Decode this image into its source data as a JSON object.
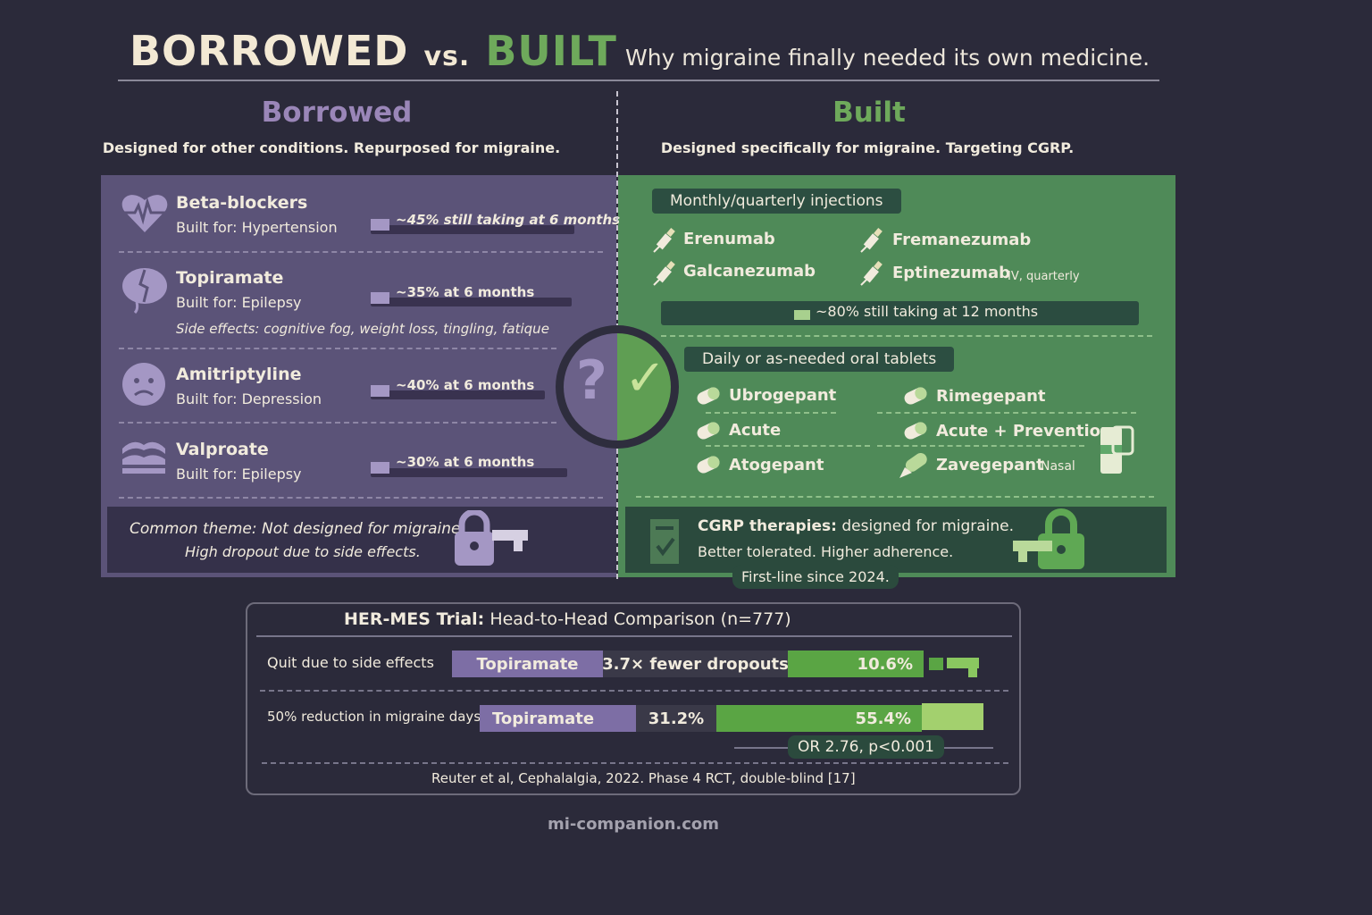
{
  "header": {
    "title_a": "BORROWED",
    "title_vs": "vs.",
    "title_b": "BUILT",
    "subtitle": "Why migraine finally needed its own medicine."
  },
  "borrowed": {
    "heading": "Borrowed",
    "subheading": "Designed for other conditions. Repurposed for migraine.",
    "drugs": [
      {
        "name": "Beta-blockers",
        "built_for": "Built for: Hypertension",
        "retention": "~45% still taking at 6 months",
        "retention_pct": 45,
        "icon": "heart-pulse-icon"
      },
      {
        "name": "Topiramate",
        "built_for": "Built for: Epilepsy",
        "retention": "~35% at 6 months",
        "retention_pct": 35,
        "side_effects": "Side effects: cognitive fog, weight loss, tingling, fatique",
        "icon": "brain-icon"
      },
      {
        "name": "Amitriptyline",
        "built_for": "Built for: Depression",
        "retention": "~40% at 6 months",
        "retention_pct": 40,
        "icon": "sad-face-icon"
      },
      {
        "name": "Valproate",
        "built_for": "Built for: Epilepsy",
        "retention": "~30% at 6 months",
        "retention_pct": 30,
        "icon": "waves-icon"
      }
    ],
    "callout_1": "Common theme: Not designed for migraine.",
    "callout_2": "High dropout due to side effects."
  },
  "built": {
    "heading": "Built",
    "subheading": "Designed specifically for migraine. Targeting CGRP.",
    "injections_label": "Monthly/quarterly injections",
    "injections": [
      {
        "name": "Erenumab"
      },
      {
        "name": "Fremanezumab"
      },
      {
        "name": "Galcanezumab"
      },
      {
        "name": "Eptinezumab",
        "note": "IV, quarterly"
      }
    ],
    "injection_retention": "~80% still taking at 12 months",
    "injection_retention_pct": 80,
    "tablets_label": "Daily or as-needed oral tablets",
    "tablets": [
      {
        "name": "Ubrogepant"
      },
      {
        "name": "Rimegepant"
      },
      {
        "name": "Acute"
      },
      {
        "name": "Acute + Prevention"
      },
      {
        "name": "Atogepant"
      },
      {
        "name": "Zavegepant",
        "note": "Nasal"
      }
    ],
    "callout_bold": "CGRP therapies:",
    "callout_1": "designed for migraine.",
    "callout_2": "Better tolerated. Higher adherence.",
    "badge": "First-line since 2024."
  },
  "center": {
    "left_symbol": "?",
    "right_symbol": "✓"
  },
  "trial": {
    "title_bold": "HER-MES Trial:",
    "title_rest": "Head-to-Head Comparison (n=777)",
    "rows": [
      {
        "label": "Quit due to side effects",
        "drug": "Topiramate",
        "middle": "3.7× fewer dropouts",
        "value": "10.6%"
      },
      {
        "label": "50% reduction in migraine days",
        "drug": "Topiramate",
        "middle": "31.2%",
        "value": "55.4%"
      }
    ],
    "stat": "OR 2.76, p<0.001",
    "citation": "Reuter et al, Cephalalgia, 2022. Phase 4 RCT, double-blind [17]"
  },
  "footer": "mi-companion.com",
  "colors": {
    "background": "#2b2a3a",
    "borrowed": "#5b5378",
    "built": "#4f8a58",
    "accent_green": "#6ea95b",
    "accent_purple": "#9a86b8"
  }
}
